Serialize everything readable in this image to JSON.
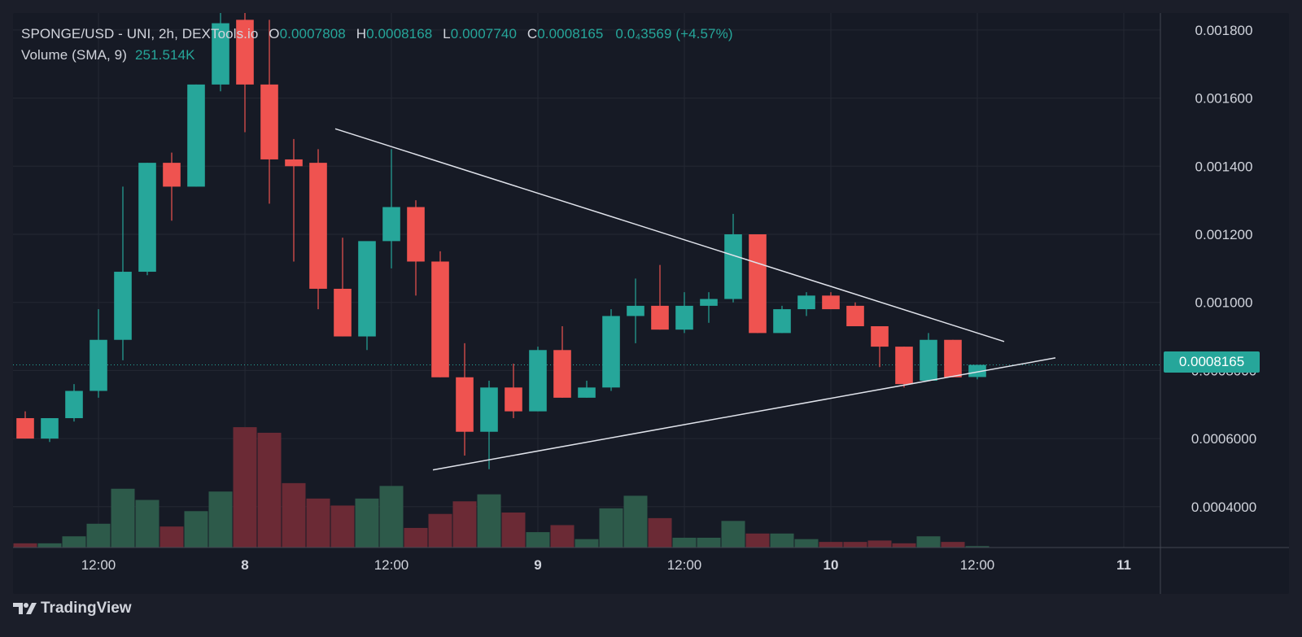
{
  "legend": {
    "title": "SPONGE/USD - UNI, 2h, DEXTools.io",
    "o_label": "O",
    "o_value": "0.0007808",
    "h_label": "H",
    "h_value": "0.0008168",
    "l_label": "L",
    "l_value": "0.0007740",
    "c_label": "C",
    "c_value": "0.0008165",
    "change": "0.0₄3569 (+4.57%)",
    "volume_label": "Volume (SMA, 9)",
    "volume_value": "251.514K"
  },
  "price_tag": "0.0008165",
  "footer": {
    "brand": "TradingView"
  },
  "colors": {
    "up": "#26a69a",
    "down": "#ef5350",
    "vol_up": "#2d5a4a",
    "vol_down": "#6b2a35",
    "grid": "#242833",
    "text": "#d1d4dc",
    "bg": "#161a25"
  },
  "chart_data": {
    "type": "candlestick",
    "y_axis": {
      "range": [
        0.00028,
        0.00185
      ],
      "ticks": [
        0.0004,
        0.0006,
        0.0008,
        0.001,
        0.0012,
        0.0014,
        0.0016,
        0.0018
      ],
      "tick_labels": [
        "0.0004000",
        "0.0006000",
        "0.0008000",
        "0.001000",
        "0.001200",
        "0.001400",
        "0.001600",
        "0.001800"
      ]
    },
    "x_axis": {
      "index_range": [
        -0.5,
        46.5
      ],
      "ticks": [
        3,
        9,
        15,
        21,
        27,
        33,
        39,
        45
      ],
      "tick_labels": [
        "12:00",
        "8",
        "12:00",
        "9",
        "12:00",
        "10",
        "12:00",
        "11"
      ],
      "bold_ticks": [
        "8",
        "9",
        "10",
        "11"
      ]
    },
    "current_price": 0.0008165,
    "candles": [
      {
        "o": 0.00066,
        "h": 0.00068,
        "l": 0.0006,
        "c": 0.0006
      },
      {
        "o": 0.0006,
        "h": 0.00066,
        "l": 0.00059,
        "c": 0.00066
      },
      {
        "o": 0.00066,
        "h": 0.00076,
        "l": 0.00065,
        "c": 0.00074
      },
      {
        "o": 0.00074,
        "h": 0.00098,
        "l": 0.00072,
        "c": 0.00089
      },
      {
        "o": 0.00089,
        "h": 0.00134,
        "l": 0.00083,
        "c": 0.00109
      },
      {
        "o": 0.00109,
        "h": 0.00141,
        "l": 0.00108,
        "c": 0.00141
      },
      {
        "o": 0.00141,
        "h": 0.00144,
        "l": 0.00124,
        "c": 0.00134
      },
      {
        "o": 0.00134,
        "h": 0.00164,
        "l": 0.00134,
        "c": 0.00164
      },
      {
        "o": 0.00164,
        "h": 0.00191,
        "l": 0.00162,
        "c": 0.00182
      },
      {
        "o": 0.00183,
        "h": 0.00188,
        "l": 0.0015,
        "c": 0.00164
      },
      {
        "o": 0.00164,
        "h": 0.00183,
        "l": 0.00129,
        "c": 0.00142
      },
      {
        "o": 0.00142,
        "h": 0.00148,
        "l": 0.00112,
        "c": 0.0014
      },
      {
        "o": 0.00141,
        "h": 0.00145,
        "l": 0.00098,
        "c": 0.00104
      },
      {
        "o": 0.00104,
        "h": 0.00119,
        "l": 0.0009,
        "c": 0.0009
      },
      {
        "o": 0.0009,
        "h": 0.00117,
        "l": 0.00086,
        "c": 0.00118
      },
      {
        "o": 0.00118,
        "h": 0.00145,
        "l": 0.0011,
        "c": 0.00128
      },
      {
        "o": 0.00128,
        "h": 0.0013,
        "l": 0.00102,
        "c": 0.00112
      },
      {
        "o": 0.00112,
        "h": 0.00115,
        "l": 0.00078,
        "c": 0.00078
      },
      {
        "o": 0.00078,
        "h": 0.00088,
        "l": 0.00055,
        "c": 0.00062
      },
      {
        "o": 0.00062,
        "h": 0.00077,
        "l": 0.00051,
        "c": 0.00075
      },
      {
        "o": 0.00075,
        "h": 0.00082,
        "l": 0.00066,
        "c": 0.00068
      },
      {
        "o": 0.00068,
        "h": 0.00087,
        "l": 0.00068,
        "c": 0.00086
      },
      {
        "o": 0.00086,
        "h": 0.00093,
        "l": 0.00072,
        "c": 0.00072
      },
      {
        "o": 0.00072,
        "h": 0.00077,
        "l": 0.00072,
        "c": 0.00075
      },
      {
        "o": 0.00075,
        "h": 0.00098,
        "l": 0.00074,
        "c": 0.00096
      },
      {
        "o": 0.00096,
        "h": 0.00107,
        "l": 0.00088,
        "c": 0.00099
      },
      {
        "o": 0.00099,
        "h": 0.00111,
        "l": 0.00092,
        "c": 0.00092
      },
      {
        "o": 0.00092,
        "h": 0.00103,
        "l": 0.00091,
        "c": 0.00099
      },
      {
        "o": 0.00099,
        "h": 0.00103,
        "l": 0.00094,
        "c": 0.00101
      },
      {
        "o": 0.00101,
        "h": 0.00126,
        "l": 0.001,
        "c": 0.0012
      },
      {
        "o": 0.0012,
        "h": 0.0012,
        "l": 0.00091,
        "c": 0.00091
      },
      {
        "o": 0.00091,
        "h": 0.00099,
        "l": 0.00091,
        "c": 0.00098
      },
      {
        "o": 0.00098,
        "h": 0.00103,
        "l": 0.00096,
        "c": 0.00102
      },
      {
        "o": 0.00102,
        "h": 0.00103,
        "l": 0.00098,
        "c": 0.00098
      },
      {
        "o": 0.00099,
        "h": 0.001,
        "l": 0.00093,
        "c": 0.00093
      },
      {
        "o": 0.00093,
        "h": 0.00093,
        "l": 0.00081,
        "c": 0.00087
      },
      {
        "o": 0.00087,
        "h": 0.00087,
        "l": 0.00075,
        "c": 0.00076
      },
      {
        "o": 0.00077,
        "h": 0.00091,
        "l": 0.00077,
        "c": 0.00089
      },
      {
        "o": 0.00089,
        "h": 0.00089,
        "l": 0.00078,
        "c": 0.00078
      },
      {
        "o": 0.0007808,
        "h": 0.0008168,
        "l": 0.000774,
        "c": 0.0008165
      }
    ],
    "volume": [
      0.03,
      0.03,
      0.08,
      0.17,
      0.42,
      0.34,
      0.15,
      0.26,
      0.4,
      0.86,
      0.82,
      0.46,
      0.35,
      0.3,
      0.35,
      0.44,
      0.14,
      0.24,
      0.33,
      0.38,
      0.25,
      0.11,
      0.16,
      0.06,
      0.28,
      0.37,
      0.21,
      0.07,
      0.07,
      0.19,
      0.1,
      0.1,
      0.06,
      0.04,
      0.04,
      0.05,
      0.03,
      0.08,
      0.04,
      0.01
    ],
    "volume_range": [
      0,
      1
    ],
    "trendlines": [
      {
        "from": [
          12.7,
          0.00151
        ],
        "to": [
          40.1,
          0.000885
        ]
      },
      {
        "from": [
          16.7,
          0.000508
        ],
        "to": [
          42.2,
          0.000837
        ]
      }
    ]
  }
}
